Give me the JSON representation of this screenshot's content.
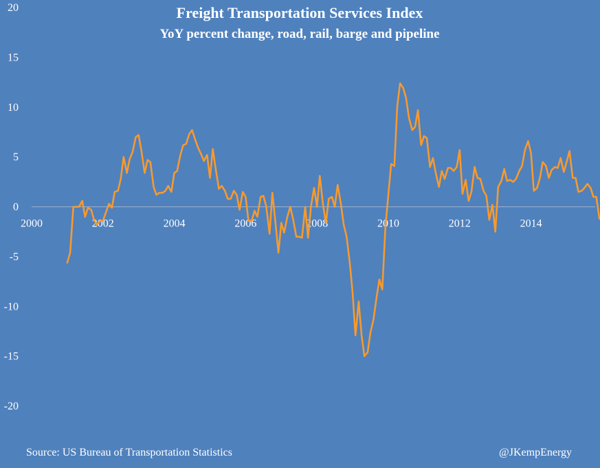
{
  "chart_data": {
    "type": "line",
    "title": "Freight Transportation Services Index",
    "subtitle": "YoY percent change, road, rail, barge and pipeline",
    "xlabel": "",
    "ylabel": "",
    "xlim": [
      2000,
      2015.8
    ],
    "ylim": [
      -20,
      20
    ],
    "grid": false,
    "legend": "none",
    "x_ticks": [
      {
        "value": 2000,
        "label": "2000"
      },
      {
        "value": 2002,
        "label": "2002"
      },
      {
        "value": 2004,
        "label": "2004"
      },
      {
        "value": 2006,
        "label": "2006"
      },
      {
        "value": 2008,
        "label": "2008"
      },
      {
        "value": 2010,
        "label": "2010"
      },
      {
        "value": 2012,
        "label": "2012"
      },
      {
        "value": 2014,
        "label": "2014"
      }
    ],
    "y_ticks": [
      {
        "value": 20,
        "label": "20"
      },
      {
        "value": 15,
        "label": "15"
      },
      {
        "value": 10,
        "label": "10"
      },
      {
        "value": 5,
        "label": "5"
      },
      {
        "value": 0,
        "label": "0"
      },
      {
        "value": -5,
        "label": "-5"
      },
      {
        "value": -10,
        "label": "-10"
      },
      {
        "value": -15,
        "label": "-15"
      },
      {
        "value": -20,
        "label": "-20"
      }
    ],
    "series": [
      {
        "color": "#f79a2e",
        "points": [
          [
            2001.0,
            -5.6
          ],
          [
            2001.08,
            -4.6
          ],
          [
            2001.17,
            0.0
          ],
          [
            2001.25,
            0.0
          ],
          [
            2001.33,
            0.0
          ],
          [
            2001.42,
            0.6
          ],
          [
            2001.5,
            -1.0
          ],
          [
            2001.58,
            -0.1
          ],
          [
            2001.67,
            -0.3
          ],
          [
            2001.75,
            -1.3
          ],
          [
            2001.83,
            -1.8
          ],
          [
            2001.92,
            -1.4
          ],
          [
            2002.0,
            -1.4
          ],
          [
            2002.08,
            -0.6
          ],
          [
            2002.17,
            0.3
          ],
          [
            2002.25,
            -0.1
          ],
          [
            2002.33,
            1.5
          ],
          [
            2002.42,
            1.6
          ],
          [
            2002.5,
            2.8
          ],
          [
            2002.58,
            5.0
          ],
          [
            2002.67,
            3.4
          ],
          [
            2002.75,
            4.8
          ],
          [
            2002.83,
            5.5
          ],
          [
            2002.92,
            7.0
          ],
          [
            2003.0,
            7.2
          ],
          [
            2003.08,
            5.6
          ],
          [
            2003.17,
            3.4
          ],
          [
            2003.25,
            4.7
          ],
          [
            2003.33,
            4.5
          ],
          [
            2003.42,
            2.0
          ],
          [
            2003.5,
            1.2
          ],
          [
            2003.58,
            1.4
          ],
          [
            2003.67,
            1.4
          ],
          [
            2003.75,
            1.6
          ],
          [
            2003.83,
            2.1
          ],
          [
            2003.92,
            1.5
          ],
          [
            2004.0,
            3.4
          ],
          [
            2004.08,
            3.6
          ],
          [
            2004.17,
            5.2
          ],
          [
            2004.25,
            6.2
          ],
          [
            2004.33,
            6.3
          ],
          [
            2004.42,
            7.3
          ],
          [
            2004.5,
            7.7
          ],
          [
            2004.58,
            6.8
          ],
          [
            2004.67,
            5.9
          ],
          [
            2004.75,
            5.3
          ],
          [
            2004.83,
            4.6
          ],
          [
            2004.92,
            5.2
          ],
          [
            2005.0,
            2.9
          ],
          [
            2005.08,
            5.8
          ],
          [
            2005.17,
            3.6
          ],
          [
            2005.25,
            1.8
          ],
          [
            2005.33,
            2.1
          ],
          [
            2005.42,
            1.6
          ],
          [
            2005.5,
            0.8
          ],
          [
            2005.58,
            0.8
          ],
          [
            2005.67,
            1.6
          ],
          [
            2005.75,
            1.2
          ],
          [
            2005.83,
            -0.3
          ],
          [
            2005.92,
            1.5
          ],
          [
            2006.0,
            1.0
          ],
          [
            2006.08,
            -1.4
          ],
          [
            2006.17,
            -1.4
          ],
          [
            2006.25,
            -0.4
          ],
          [
            2006.33,
            -1.0
          ],
          [
            2006.42,
            1.0
          ],
          [
            2006.5,
            1.1
          ],
          [
            2006.58,
            0.0
          ],
          [
            2006.67,
            -2.7
          ],
          [
            2006.75,
            1.4
          ],
          [
            2006.83,
            -1.4
          ],
          [
            2006.92,
            -4.6
          ],
          [
            2007.0,
            -1.6
          ],
          [
            2007.08,
            -2.6
          ],
          [
            2007.17,
            -1.0
          ],
          [
            2007.25,
            0.0
          ],
          [
            2007.33,
            -1.2
          ],
          [
            2007.42,
            -3.0
          ],
          [
            2007.5,
            -3.0
          ],
          [
            2007.58,
            -3.1
          ],
          [
            2007.67,
            0.0
          ],
          [
            2007.75,
            -3.1
          ],
          [
            2007.83,
            0.0
          ],
          [
            2007.92,
            1.9
          ],
          [
            2008.0,
            0.0
          ],
          [
            2008.08,
            3.1
          ],
          [
            2008.17,
            0.2
          ],
          [
            2008.25,
            -1.6
          ],
          [
            2008.33,
            0.8
          ],
          [
            2008.42,
            1.0
          ],
          [
            2008.5,
            0.0
          ],
          [
            2008.58,
            2.2
          ],
          [
            2008.67,
            0.3
          ],
          [
            2008.75,
            -1.8
          ],
          [
            2008.83,
            -3.0
          ],
          [
            2008.92,
            -5.6
          ],
          [
            2009.0,
            -8.7
          ],
          [
            2009.08,
            -12.9
          ],
          [
            2009.17,
            -9.5
          ],
          [
            2009.25,
            -12.9
          ],
          [
            2009.33,
            -15.0
          ],
          [
            2009.42,
            -14.6
          ],
          [
            2009.5,
            -12.6
          ],
          [
            2009.58,
            -11.4
          ],
          [
            2009.67,
            -9.1
          ],
          [
            2009.75,
            -7.3
          ],
          [
            2009.83,
            -8.3
          ],
          [
            2009.92,
            -2.0
          ],
          [
            2010.0,
            1.2
          ],
          [
            2010.08,
            4.3
          ],
          [
            2010.17,
            4.1
          ],
          [
            2010.25,
            10.1
          ],
          [
            2010.33,
            12.4
          ],
          [
            2010.42,
            11.9
          ],
          [
            2010.5,
            10.9
          ],
          [
            2010.58,
            8.9
          ],
          [
            2010.67,
            7.7
          ],
          [
            2010.75,
            8.0
          ],
          [
            2010.83,
            9.7
          ],
          [
            2010.92,
            6.2
          ],
          [
            2011.0,
            7.1
          ],
          [
            2011.08,
            6.9
          ],
          [
            2011.17,
            4.0
          ],
          [
            2011.25,
            4.9
          ],
          [
            2011.33,
            3.4
          ],
          [
            2011.42,
            2.0
          ],
          [
            2011.5,
            3.6
          ],
          [
            2011.58,
            2.8
          ],
          [
            2011.67,
            3.9
          ],
          [
            2011.75,
            3.9
          ],
          [
            2011.83,
            3.6
          ],
          [
            2011.92,
            4.0
          ],
          [
            2012.0,
            5.7
          ],
          [
            2012.08,
            1.3
          ],
          [
            2012.17,
            2.7
          ],
          [
            2012.25,
            0.6
          ],
          [
            2012.33,
            1.5
          ],
          [
            2012.42,
            4.0
          ],
          [
            2012.5,
            2.9
          ],
          [
            2012.58,
            2.8
          ],
          [
            2012.67,
            1.6
          ],
          [
            2012.75,
            1.1
          ],
          [
            2012.83,
            -1.3
          ],
          [
            2012.92,
            0.2
          ],
          [
            2013.0,
            -2.5
          ],
          [
            2013.08,
            2.0
          ],
          [
            2013.17,
            2.6
          ],
          [
            2013.25,
            3.8
          ],
          [
            2013.33,
            2.6
          ],
          [
            2013.42,
            2.7
          ],
          [
            2013.5,
            2.5
          ],
          [
            2013.58,
            2.8
          ],
          [
            2013.67,
            3.6
          ],
          [
            2013.75,
            4.1
          ],
          [
            2013.83,
            5.7
          ],
          [
            2013.92,
            6.6
          ],
          [
            2014.0,
            5.4
          ],
          [
            2014.08,
            1.6
          ],
          [
            2014.17,
            1.9
          ],
          [
            2014.25,
            2.9
          ],
          [
            2014.33,
            4.5
          ],
          [
            2014.42,
            4.1
          ],
          [
            2014.5,
            2.9
          ],
          [
            2014.58,
            3.7
          ],
          [
            2014.67,
            4.0
          ],
          [
            2014.75,
            3.9
          ],
          [
            2014.83,
            4.9
          ],
          [
            2014.92,
            3.5
          ],
          [
            2015.0,
            4.5
          ],
          [
            2015.08,
            5.6
          ],
          [
            2015.17,
            2.9
          ],
          [
            2015.25,
            2.9
          ],
          [
            2015.33,
            1.5
          ],
          [
            2015.42,
            1.6
          ],
          [
            2015.5,
            1.9
          ],
          [
            2015.58,
            2.3
          ],
          [
            2015.67,
            1.9
          ],
          [
            2015.75,
            1.0
          ],
          [
            2015.83,
            1.0
          ],
          [
            2015.92,
            -1.2
          ]
        ]
      }
    ],
    "source": "Source: US Bureau of Transportation Statistics",
    "credit": "@JKempEnergy"
  }
}
